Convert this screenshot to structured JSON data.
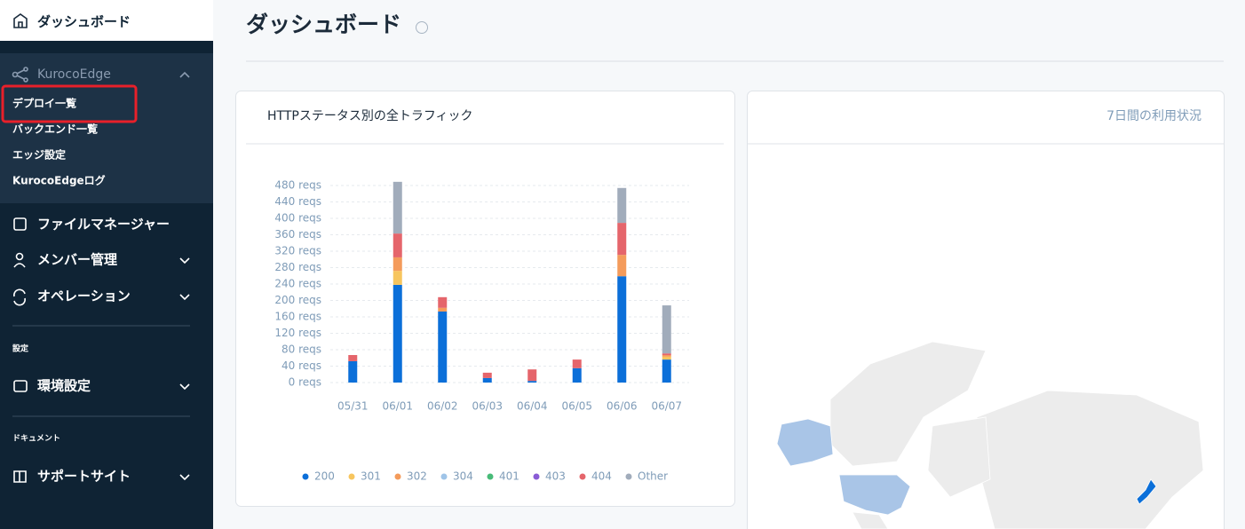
{
  "sidebar": {
    "dashboard": "ダッシュボード",
    "section": "KurocoEdge",
    "section_items": [
      "デプロイ一覧",
      "バックエンド一覧",
      "エッジ設定",
      "KurocoEdgeログ"
    ],
    "items": [
      "ファイルマネージャー",
      "メンバー管理",
      "オペレーション"
    ],
    "settings_caption": "設定",
    "settings_item": "環境設定",
    "docs_caption": "ドキュメント",
    "docs_item": "サポートサイト"
  },
  "header": {
    "title": "ダッシュボード"
  },
  "usage_card": {
    "title": "7日間の利用状況"
  },
  "chart_data": {
    "type": "bar",
    "stacked": true,
    "title": "HTTPステータス別の全トラフィック",
    "categories": [
      "05/31",
      "06/01",
      "06/02",
      "06/03",
      "06/04",
      "06/05",
      "06/06",
      "06/07"
    ],
    "series": [
      {
        "name": "200",
        "color": "#0b6fd9",
        "values": [
          52,
          238,
          173,
          11,
          4,
          35,
          259,
          56
        ]
      },
      {
        "name": "301",
        "color": "#f7c55e",
        "values": [
          0,
          34,
          0,
          0,
          0,
          0,
          0,
          7
        ]
      },
      {
        "name": "302",
        "color": "#f49b5b",
        "values": [
          0,
          33,
          9,
          0,
          0,
          0,
          52,
          4
        ]
      },
      {
        "name": "304",
        "color": "#9fc4e8",
        "values": [
          0,
          0,
          0,
          0,
          0,
          0,
          0,
          0
        ]
      },
      {
        "name": "401",
        "color": "#48bb78",
        "values": [
          0,
          0,
          0,
          0,
          0,
          0,
          0,
          0
        ]
      },
      {
        "name": "403",
        "color": "#8a5cd6",
        "values": [
          0,
          0,
          0,
          0,
          0,
          0,
          0,
          0
        ]
      },
      {
        "name": "404",
        "color": "#e5656b",
        "values": [
          15,
          58,
          26,
          13,
          28,
          21,
          78,
          4
        ]
      },
      {
        "name": "Other",
        "color": "#a1acbb",
        "values": [
          0,
          126,
          0,
          0,
          0,
          0,
          85,
          117
        ]
      }
    ],
    "ylim": [
      0,
      480
    ],
    "yticks": [
      {
        "value": 0,
        "label": "0 reqs"
      },
      {
        "value": 40,
        "label": "40 reqs"
      },
      {
        "value": 80,
        "label": "80 reqs"
      },
      {
        "value": 120,
        "label": "120 reqs"
      },
      {
        "value": 160,
        "label": "160 reqs"
      },
      {
        "value": 200,
        "label": "200 reqs"
      },
      {
        "value": 240,
        "label": "240 reqs"
      },
      {
        "value": 280,
        "label": "280 reqs"
      },
      {
        "value": 320,
        "label": "320 reqs"
      },
      {
        "value": 360,
        "label": "360 reqs"
      },
      {
        "value": 400,
        "label": "400 reqs"
      },
      {
        "value": 440,
        "label": "440 reqs"
      },
      {
        "value": 480,
        "label": "480 reqs"
      }
    ],
    "grid": true,
    "legend": "bottom"
  }
}
